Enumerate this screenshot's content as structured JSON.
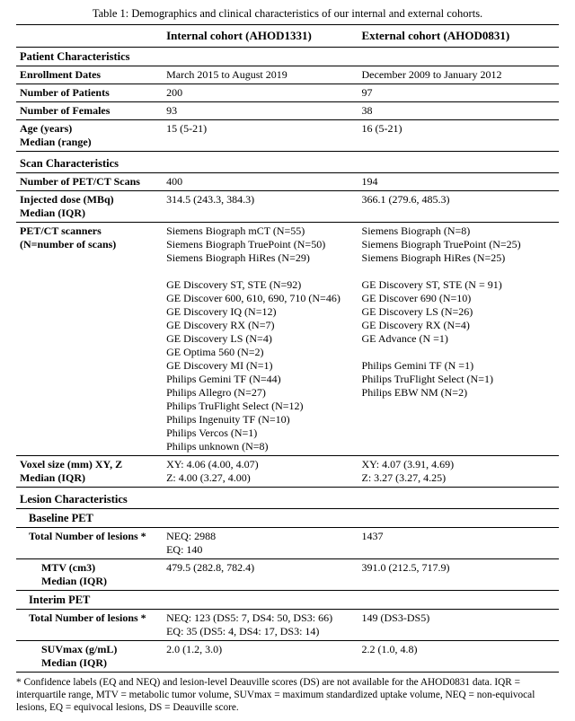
{
  "caption": "Table 1: Demographics and clinical characteristics of our internal and external cohorts.",
  "headers": {
    "col1": "",
    "col2": "Internal cohort (AHOD1331)",
    "col3": "External cohort (AHOD0831)"
  },
  "sections": {
    "patient": "Patient Characteristics",
    "scan": "Scan Characteristics",
    "lesion": "Lesion Characteristics",
    "baseline": "Baseline PET",
    "interim": "Interim PET"
  },
  "rows": {
    "enroll": {
      "label": "Enrollment Dates",
      "c2": "March 2015 to August 2019",
      "c3": "December 2009 to January 2012"
    },
    "npat": {
      "label": "Number of Patients",
      "c2": "200",
      "c3": "97"
    },
    "nfem": {
      "label": "Number of Females",
      "c2": "93",
      "c3": "38"
    },
    "age": {
      "label": "Age (years)\nMedian (range)",
      "c2": "15 (5-21)",
      "c3": "16 (5-21)"
    },
    "nscans": {
      "label": "Number of PET/CT Scans",
      "c2": "400",
      "c3": "194"
    },
    "dose": {
      "label": "Injected dose (MBq)\nMedian (IQR)",
      "c2": "314.5 (243.3, 384.3)",
      "c3": "366.1 (279.6, 485.3)"
    },
    "scanners": {
      "label": "PET/CT scanners\n(N=number of scans)",
      "c2": "Siemens Biograph mCT (N=55)\nSiemens Biograph TruePoint (N=50)\nSiemens Biograph HiRes (N=29)\n\nGE Discovery ST, STE (N=92)\nGE Discover 600, 610, 690, 710 (N=46)\nGE Discovery IQ (N=12)\nGE Discovery RX (N=7)\nGE Discovery LS (N=4)\nGE Optima 560 (N=2)\nGE Discovery MI (N=1)\nPhilips Gemini TF (N=44)\nPhilips Allegro (N=27)\nPhilips TruFlight Select (N=12)\nPhilips Ingenuity TF (N=10)\nPhilips Vercos (N=1)\nPhilips unknown (N=8)",
      "c3": "Siemens Biograph (N=8)\nSiemens Biograph TruePoint (N=25)\nSiemens Biograph HiRes (N=25)\n\nGE Discovery ST, STE (N = 91)\nGE Discover 690 (N=10)\nGE Discovery LS (N=26)\nGE Discovery RX (N=4)\nGE Advance (N =1)\n\nPhilips Gemini TF (N =1)\nPhilips TruFlight Select (N=1)\nPhilips EBW NM (N=2)"
    },
    "voxel": {
      "label": "Voxel size (mm) XY, Z\nMedian (IQR)",
      "c2": "XY: 4.06 (4.00, 4.07)\nZ: 4.00 (3.27, 4.00)",
      "c3": "XY: 4.07 (3.91, 4.69)\nZ: 3.27 (3.27, 4.25)"
    },
    "bl_lesions": {
      "label": "Total Number of lesions *",
      "c2": "NEQ: 2988\nEQ: 140",
      "c3": "1437"
    },
    "mtv": {
      "label": "MTV (cm3)\nMedian (IQR)",
      "c2": "479.5 (282.8, 782.4)",
      "c3": "391.0 (212.5, 717.9)"
    },
    "int_lesions": {
      "label": "Total Number of lesions *",
      "c2": "NEQ: 123 (DS5: 7, DS4: 50, DS3: 66)\nEQ: 35 (DS5: 4, DS4: 17, DS3: 14)",
      "c3": "149 (DS3-DS5)"
    },
    "suvmax": {
      "label": "SUVmax (g/mL)\nMedian (IQR)",
      "c2": "2.0 (1.2, 3.0)",
      "c3": "2.2 (1.0, 4.8)"
    }
  },
  "footnote": "* Confidence labels (EQ and NEQ) and lesion-level Deauville scores (DS) are not available for the AHOD0831 data. IQR = interquartile range, MTV = metabolic tumor volume, SUVmax = maximum standardized uptake volume, NEQ = non-equivocal lesions, EQ = equivocal lesions, DS = Deauville score."
}
